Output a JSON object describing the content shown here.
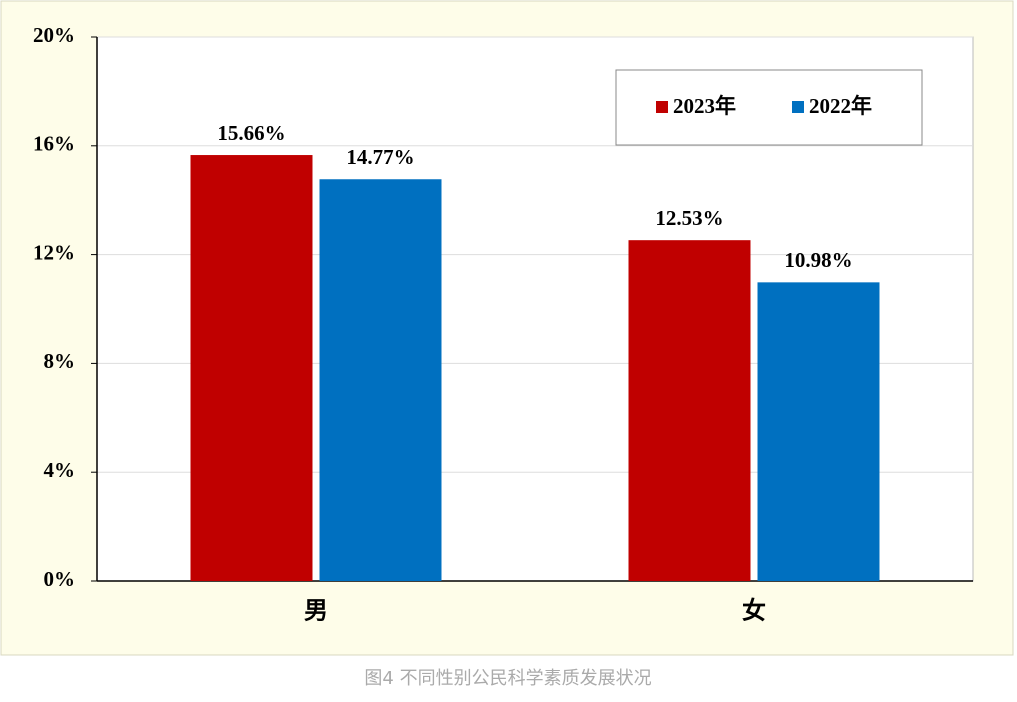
{
  "chart_data": {
    "type": "bar",
    "caption": "图4 不同性别公民科学素质发展状况",
    "categories": [
      "男",
      "女"
    ],
    "series": [
      {
        "name": "2023年",
        "color": "#c00000",
        "values": [
          15.66,
          12.53
        ],
        "value_labels": [
          "15.66%",
          "12.53%"
        ]
      },
      {
        "name": "2022年",
        "color": "#0070c0",
        "values": [
          14.77,
          10.98
        ],
        "value_labels": [
          "14.77%",
          "10.98%"
        ]
      }
    ],
    "ylim": [
      0,
      20
    ],
    "yticks": [
      {
        "value": 0,
        "label": "0%"
      },
      {
        "value": 4,
        "label": "4%"
      },
      {
        "value": 8,
        "label": "8%"
      },
      {
        "value": 12,
        "label": "12%"
      },
      {
        "value": 16,
        "label": "16%"
      },
      {
        "value": 20,
        "label": "20%"
      }
    ],
    "grid": true,
    "legend": "upper-right"
  }
}
